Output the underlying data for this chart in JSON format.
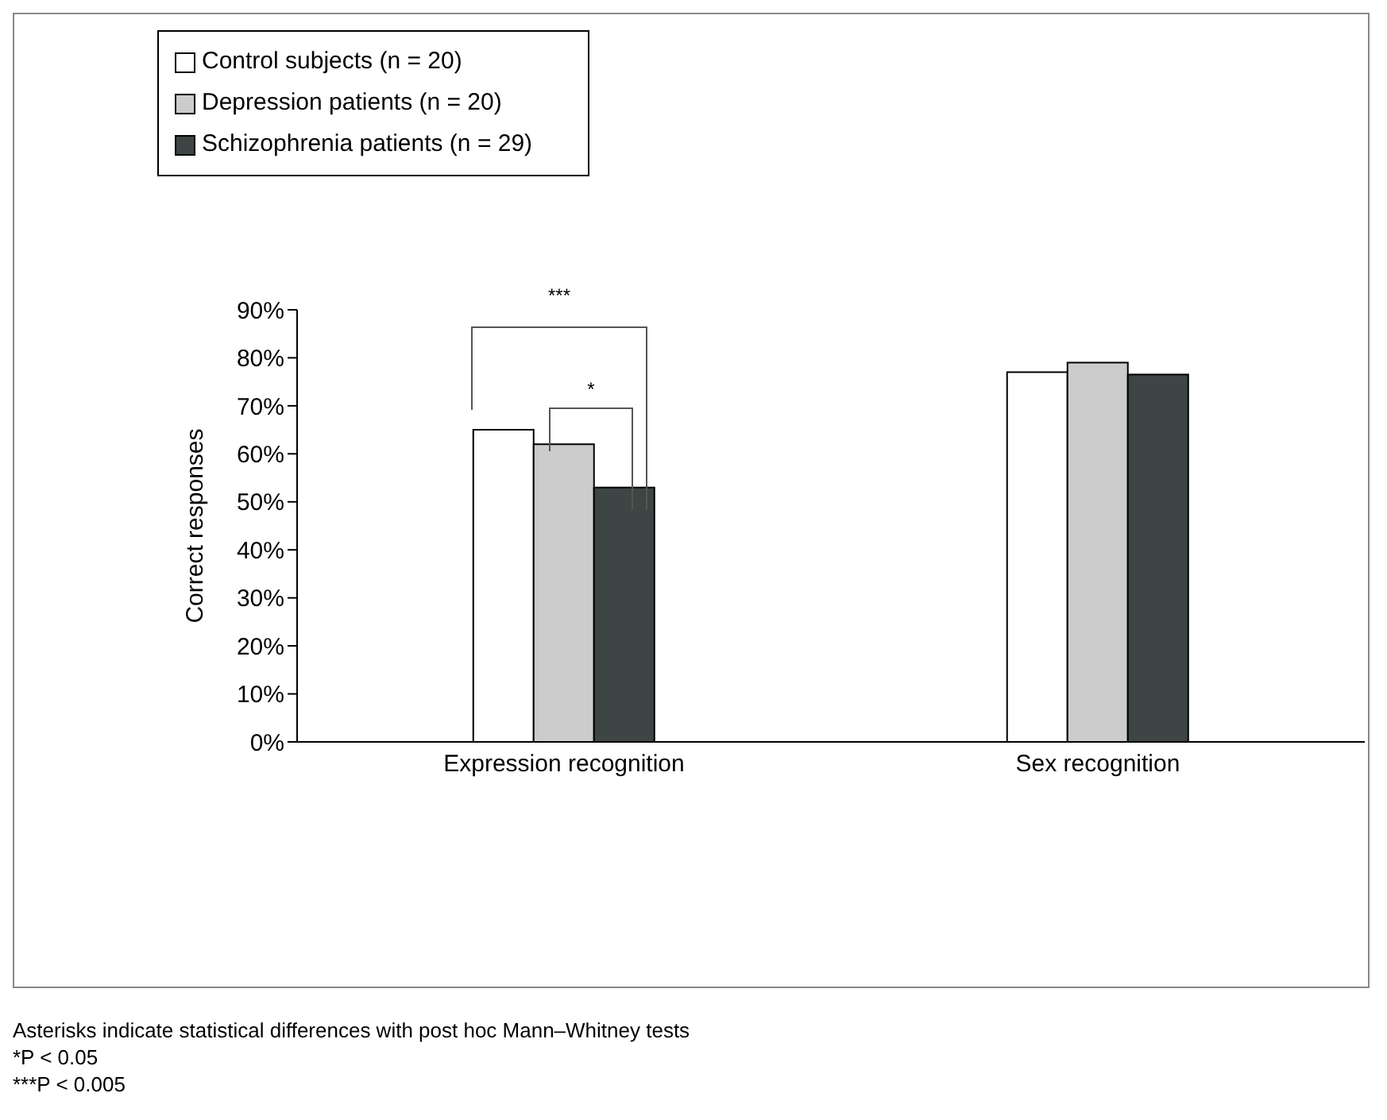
{
  "chart_data": {
    "type": "bar",
    "ylabel": "Correct responses",
    "categories": [
      "Expression recognition",
      "Sex recognition"
    ],
    "series": [
      {
        "name": "Control subjects (n = 20)",
        "color": "#ffffff",
        "values": [
          65,
          77
        ]
      },
      {
        "name": "Depression patients (n = 20)",
        "color": "#cccccc",
        "values": [
          62,
          79
        ]
      },
      {
        "name": "Schizophrenia patients (n = 29)",
        "color": "#3d4644",
        "values": [
          53,
          76.5
        ]
      }
    ],
    "ylim": [
      0,
      90
    ],
    "yticks": [
      {
        "value": 0,
        "label": "0%"
      },
      {
        "value": 10,
        "label": "10%"
      },
      {
        "value": 20,
        "label": "20%"
      },
      {
        "value": 30,
        "label": "30%"
      },
      {
        "value": 40,
        "label": "40%"
      },
      {
        "value": 50,
        "label": "50%"
      },
      {
        "value": 60,
        "label": "60%"
      },
      {
        "value": 70,
        "label": "70%"
      },
      {
        "value": 80,
        "label": "80%"
      },
      {
        "value": 90,
        "label": "90%"
      }
    ],
    "grid": false,
    "legend": "top left",
    "annotations": [
      "***",
      "*",
      "Asterisks indicate statistical differences with post hoc Mann–Whitney tests",
      "*P < 0.05",
      "***P < 0.005"
    ]
  }
}
